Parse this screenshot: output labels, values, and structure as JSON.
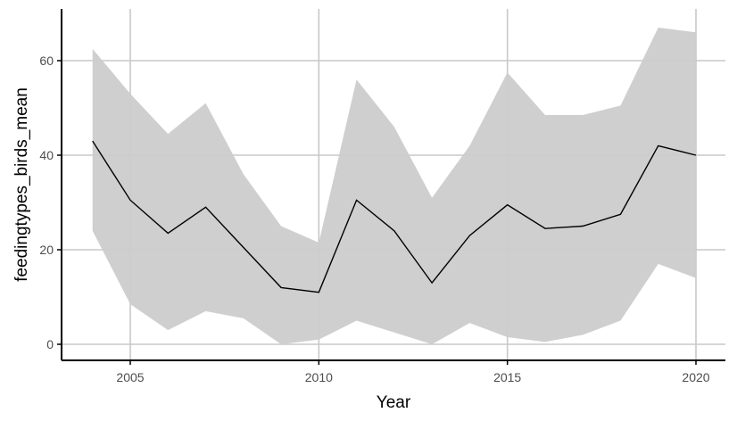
{
  "chart_data": {
    "type": "line",
    "title": "",
    "xlabel": "Year",
    "ylabel": "feedingtypes_birds_mean",
    "x": [
      2004,
      2005,
      2006,
      2007,
      2008,
      2009,
      2010,
      2011,
      2012,
      2013,
      2014,
      2015,
      2016,
      2017,
      2018,
      2019,
      2020
    ],
    "series": [
      {
        "name": "feedingtypes_birds_mean",
        "values": [
          43,
          30.5,
          23.5,
          29,
          20.5,
          12,
          11,
          30.5,
          24,
          13,
          23,
          29.5,
          24.5,
          25,
          27.5,
          42,
          40
        ]
      },
      {
        "name": "upper",
        "values": [
          62.5,
          53,
          44.5,
          51,
          36,
          25,
          21.5,
          56,
          46,
          31,
          42,
          57.5,
          48.5,
          48.5,
          50.5,
          67,
          66
        ]
      },
      {
        "name": "lower",
        "values": [
          24,
          8.5,
          3,
          7,
          5.5,
          0,
          1,
          5,
          2.5,
          0,
          4.5,
          1.5,
          0.5,
          2,
          5,
          17,
          14
        ]
      }
    ],
    "xticks": [
      2005,
      2010,
      2015,
      2020
    ],
    "yticks": [
      0,
      20,
      40,
      60
    ],
    "xlim": [
      2003,
      2020.8
    ],
    "ylim": [
      -3.2,
      70.5
    ],
    "grid": true,
    "legend": "none",
    "colors": {
      "line": "#000000",
      "ribbon": "#cccccc",
      "grid": "#c8c8c8",
      "axis": "#000000"
    }
  }
}
